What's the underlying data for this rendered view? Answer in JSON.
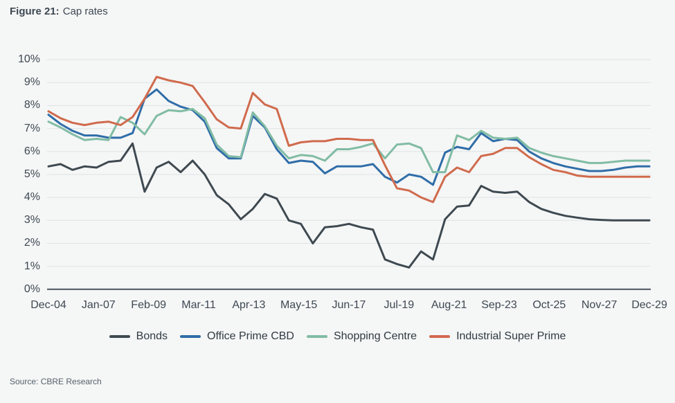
{
  "figure": {
    "label": "Figure 21:",
    "title": "Cap rates"
  },
  "source": "Source: CBRE Research",
  "chart_data": {
    "type": "line",
    "title": "Cap rates",
    "xlabel": "",
    "ylabel": "",
    "ylim": [
      0,
      10
    ],
    "grid": true,
    "legend_position": "bottom",
    "background": "#f5f6f6",
    "gridline_color": "#dee4e4",
    "axis_color": "#4a545c",
    "text_color": "#3d4852",
    "y_ticks": [
      "0%",
      "1%",
      "2%",
      "3%",
      "4%",
      "5%",
      "6%",
      "7%",
      "8%",
      "9%",
      "10%"
    ],
    "x_tick_labels": [
      "Dec-04",
      "Jan-07",
      "Feb-09",
      "Mar-11",
      "Apr-13",
      "May-15",
      "Jun-17",
      "Jul-19",
      "Aug-21",
      "Sep-23",
      "Oct-25",
      "Nov-27",
      "Dec-29"
    ],
    "sampling": "semiannual points from Dec-04 to Dec-29 (51 points per series)",
    "series": [
      {
        "name": "Bonds",
        "color": "#3e4950",
        "values": [
          5.35,
          5.45,
          5.2,
          5.35,
          5.3,
          5.55,
          5.6,
          6.35,
          4.25,
          5.3,
          5.55,
          5.1,
          5.6,
          5.0,
          4.1,
          3.7,
          3.05,
          3.5,
          4.15,
          3.95,
          3.0,
          2.85,
          2.0,
          2.7,
          2.75,
          2.85,
          2.7,
          2.6,
          1.3,
          1.1,
          0.95,
          1.65,
          1.3,
          3.05,
          3.6,
          3.65,
          4.5,
          4.25,
          4.2,
          4.25,
          3.8,
          3.5,
          3.33,
          3.2,
          3.12,
          3.05,
          3.02,
          3.0,
          3.0,
          3.0,
          3.0
        ]
      },
      {
        "name": "Office Prime CBD",
        "color": "#2f6da8",
        "values": [
          7.6,
          7.2,
          6.9,
          6.7,
          6.7,
          6.6,
          6.6,
          6.8,
          8.3,
          8.7,
          8.2,
          7.95,
          7.8,
          7.3,
          6.15,
          5.7,
          5.7,
          7.55,
          7.05,
          6.1,
          5.5,
          5.6,
          5.55,
          5.05,
          5.35,
          5.35,
          5.35,
          5.45,
          4.9,
          4.65,
          5.0,
          4.9,
          4.55,
          5.95,
          6.2,
          6.1,
          6.8,
          6.45,
          6.55,
          6.5,
          6.0,
          5.7,
          5.5,
          5.35,
          5.25,
          5.15,
          5.15,
          5.2,
          5.3,
          5.35,
          5.35
        ]
      },
      {
        "name": "Shopping Centre",
        "color": "#81bca4",
        "values": [
          7.3,
          7.05,
          6.75,
          6.5,
          6.55,
          6.5,
          7.5,
          7.25,
          6.75,
          7.55,
          7.8,
          7.75,
          7.85,
          7.45,
          6.3,
          5.8,
          5.75,
          7.7,
          7.1,
          6.25,
          5.7,
          5.85,
          5.8,
          5.6,
          6.1,
          6.1,
          6.2,
          6.35,
          5.7,
          6.3,
          6.35,
          6.15,
          5.1,
          5.1,
          6.7,
          6.5,
          6.9,
          6.6,
          6.55,
          6.6,
          6.15,
          5.95,
          5.8,
          5.7,
          5.6,
          5.5,
          5.5,
          5.55,
          5.6,
          5.6,
          5.6
        ]
      },
      {
        "name": "Industrial Super Prime",
        "color": "#d06a4c",
        "values": [
          7.75,
          7.45,
          7.25,
          7.15,
          7.25,
          7.3,
          7.15,
          7.5,
          8.3,
          9.25,
          9.1,
          9.0,
          8.85,
          8.15,
          7.4,
          7.05,
          7.0,
          8.55,
          8.05,
          7.85,
          6.25,
          6.4,
          6.45,
          6.45,
          6.55,
          6.55,
          6.5,
          6.5,
          5.4,
          4.4,
          4.3,
          4.0,
          3.8,
          4.9,
          5.3,
          5.1,
          5.8,
          5.9,
          6.15,
          6.15,
          5.75,
          5.45,
          5.2,
          5.1,
          4.95,
          4.9,
          4.9,
          4.9,
          4.9,
          4.9,
          4.9
        ]
      }
    ]
  }
}
